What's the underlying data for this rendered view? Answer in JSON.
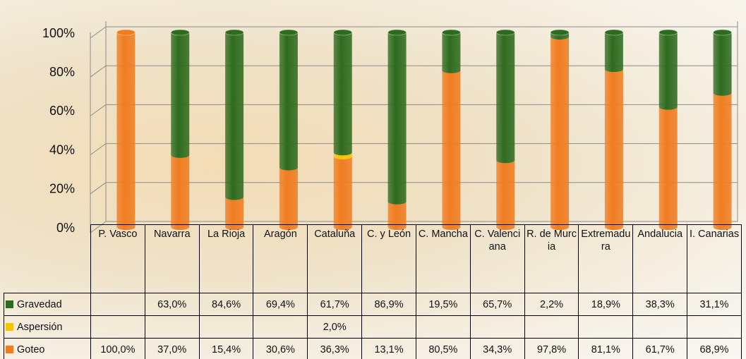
{
  "chart_data": {
    "type": "stacked-cylinder",
    "categories": [
      "P. Vasco",
      "Navarra",
      "La Rioja",
      "Aragón",
      "Cataluña",
      "C. y León",
      "C. Mancha",
      "C. Valenciana",
      "R. de Murcia",
      "Extremadura",
      "Andalucia",
      "I. Canarias"
    ],
    "series": [
      {
        "name": "Gravedad",
        "color": "#2e6b1e",
        "values": [
          null,
          63.0,
          84.6,
          69.4,
          61.7,
          86.9,
          19.5,
          65.7,
          2.2,
          18.9,
          38.3,
          31.1
        ],
        "value_labels": [
          null,
          "63,0%",
          "84,6%",
          "69,4%",
          "61,7%",
          "86,9%",
          "19,5%",
          "65,7%",
          "2,2%",
          "18,9%",
          "38,3%",
          "31,1%"
        ]
      },
      {
        "name": "Aspersión",
        "color": "#f5c400",
        "values": [
          null,
          null,
          null,
          null,
          2.0,
          null,
          null,
          null,
          null,
          null,
          null,
          null
        ],
        "value_labels": [
          null,
          null,
          null,
          null,
          "2,0%",
          null,
          null,
          null,
          null,
          null,
          null,
          null
        ]
      },
      {
        "name": "Goteo",
        "color": "#f07c20",
        "values": [
          100.0,
          37.0,
          15.4,
          30.6,
          36.3,
          13.1,
          80.5,
          34.3,
          97.8,
          81.1,
          61.7,
          68.9
        ],
        "value_labels": [
          "100,0%",
          "37,0%",
          "15,4%",
          "30,6%",
          "36,3%",
          "13,1%",
          "80,5%",
          "34,3%",
          "97,8%",
          "81,1%",
          "61,7%",
          "68,9%"
        ]
      }
    ],
    "ylim": [
      0,
      100
    ],
    "yticks": [
      {
        "value": 0,
        "label": "0%"
      },
      {
        "value": 20,
        "label": "20%"
      },
      {
        "value": 40,
        "label": "40%"
      },
      {
        "value": 60,
        "label": "60%"
      },
      {
        "value": 80,
        "label": "80%"
      },
      {
        "value": 100,
        "label": "100%"
      }
    ],
    "grid": true
  }
}
